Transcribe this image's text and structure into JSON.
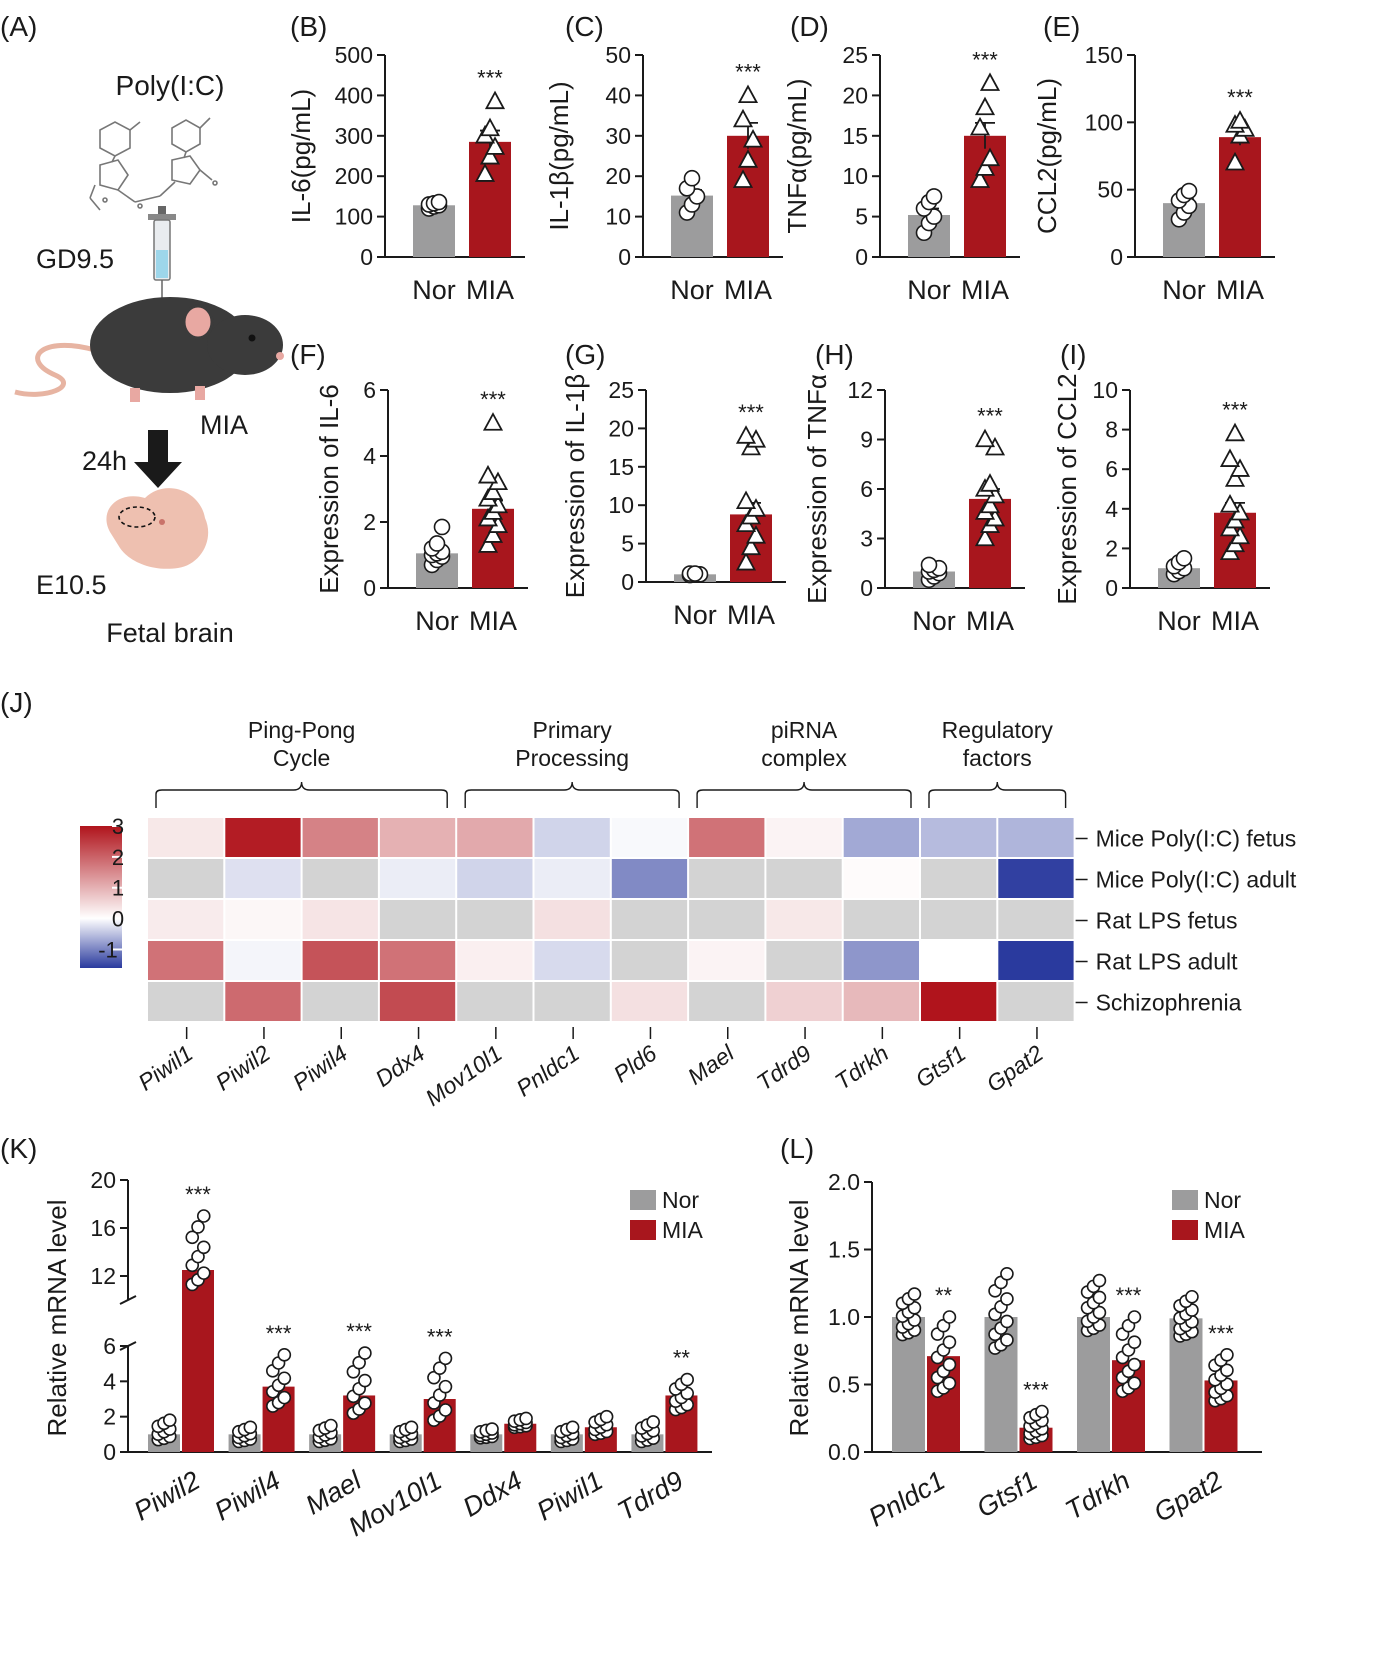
{
  "colors": {
    "nor": "#9c9c9d",
    "mia": "#a8161d",
    "axis": "#1a1a1a",
    "hm_low": "#2a3a9e",
    "hm_mid": "#ffffff",
    "hm_high": "#b0141c",
    "hm_na": "#d3d3d3"
  },
  "panel_a": {
    "label": "(A)",
    "drug": "Poly(I:C)",
    "gd": "GD9.5",
    "mia": "MIA",
    "time": "24h",
    "stage": "E10.5",
    "tissue": "Fetal brain"
  },
  "chart_data": [
    {
      "id": "B",
      "label": "(B)",
      "type": "bar",
      "ylabel": "IL-6(pg/mL)",
      "ylim": [
        0,
        500
      ],
      "ticks": [
        0,
        100,
        200,
        300,
        400,
        500
      ],
      "categories": [
        "Nor",
        "MIA"
      ],
      "values": [
        128,
        285
      ],
      "errors": [
        6,
        28
      ],
      "sig": "***",
      "points": [
        [
          120,
          125,
          128,
          130,
          133,
          136
        ],
        [
          205,
          248,
          272,
          300,
          318,
          385
        ]
      ]
    },
    {
      "id": "C",
      "label": "(C)",
      "type": "bar",
      "ylabel": "IL-1β(pg/mL)",
      "ylim": [
        0,
        50
      ],
      "ticks": [
        0,
        10,
        20,
        30,
        40,
        50
      ],
      "categories": [
        "Nor",
        "MIA"
      ],
      "values": [
        15.2,
        30
      ],
      "errors": [
        1.4,
        3.2
      ],
      "sig": "***",
      "points": [
        [
          11,
          13,
          15,
          17,
          19.5
        ],
        [
          19,
          24,
          29,
          34,
          40
        ]
      ]
    },
    {
      "id": "D",
      "label": "(D)",
      "type": "bar",
      "ylabel": "TNFα(pg/mL)",
      "ylim": [
        0,
        25
      ],
      "ticks": [
        0,
        5,
        10,
        15,
        20,
        25
      ],
      "categories": [
        "Nor",
        "MIA"
      ],
      "values": [
        5.2,
        15
      ],
      "errors": [
        0.8,
        1.6
      ],
      "sig": "***",
      "points": [
        [
          3,
          4.2,
          5,
          6,
          6.8,
          7.5
        ],
        [
          9.5,
          11,
          12.2,
          16,
          18.5,
          21.5
        ]
      ]
    },
    {
      "id": "E",
      "label": "(E)",
      "type": "bar",
      "ylabel": "CCL2(pg/mL)",
      "ylim": [
        0,
        150
      ],
      "ticks": [
        0,
        50,
        100,
        150
      ],
      "categories": [
        "Nor",
        "MIA"
      ],
      "values": [
        40,
        89
      ],
      "errors": [
        3,
        6
      ],
      "sig": "***",
      "points": [
        [
          28,
          33,
          38,
          42,
          46,
          49
        ],
        [
          70,
          90,
          95,
          98,
          101
        ]
      ]
    },
    {
      "id": "F",
      "label": "(F)",
      "type": "bar",
      "ylabel": "Expression of IL-6",
      "ylim": [
        0,
        6
      ],
      "ticks": [
        0,
        2,
        4,
        6
      ],
      "categories": [
        "Nor",
        "MIA"
      ],
      "values": [
        1.05,
        2.4
      ],
      "errors": [
        0.1,
        0.25
      ],
      "sig": "***",
      "points": [
        [
          0.7,
          0.85,
          0.95,
          1.0,
          1.05,
          1.1,
          1.2,
          1.35,
          1.85
        ],
        [
          1.3,
          1.6,
          1.9,
          2.1,
          2.3,
          2.5,
          2.7,
          2.9,
          3.2,
          3.4,
          5.0
        ]
      ]
    },
    {
      "id": "G",
      "label": "(G)",
      "type": "bar",
      "ylabel": "Expression of IL-1β",
      "ylim": [
        0,
        25
      ],
      "ticks": [
        0,
        5,
        10,
        15,
        20,
        25
      ],
      "categories": [
        "Nor",
        "MIA"
      ],
      "values": [
        1.0,
        8.8
      ],
      "errors": [
        0.1,
        1.5
      ],
      "sig": "***",
      "points": [
        [
          0.9,
          1.0,
          1.0,
          1.1,
          1.1
        ],
        [
          2.5,
          4.5,
          6.0,
          7.5,
          8.5,
          9.5,
          10.5,
          17.5,
          18.5,
          19.0
        ]
      ]
    },
    {
      "id": "H",
      "label": "(H)",
      "type": "bar",
      "ylabel": "Expression of TNFα",
      "ylim": [
        0,
        12
      ],
      "ticks": [
        0,
        3,
        6,
        9,
        12
      ],
      "categories": [
        "Nor",
        "MIA"
      ],
      "values": [
        1.0,
        5.4
      ],
      "errors": [
        0.1,
        0.6
      ],
      "sig": "***",
      "points": [
        [
          0.5,
          0.7,
          0.9,
          1.0,
          1.1,
          1.2,
          1.4
        ],
        [
          3.0,
          3.8,
          4.2,
          4.6,
          5.0,
          5.6,
          6.0,
          6.3,
          8.5,
          9.0
        ]
      ]
    },
    {
      "id": "I",
      "label": "(I)",
      "type": "bar",
      "ylabel": "Expression of CCL2",
      "ylim": [
        0,
        10
      ],
      "ticks": [
        0,
        2,
        4,
        6,
        8,
        10
      ],
      "categories": [
        "Nor",
        "MIA"
      ],
      "values": [
        1.0,
        3.8
      ],
      "errors": [
        0.1,
        0.5
      ],
      "sig": "***",
      "points": [
        [
          0.7,
          0.85,
          1.0,
          1.1,
          1.3,
          1.5
        ],
        [
          1.8,
          2.2,
          2.6,
          3.0,
          3.4,
          3.8,
          4.2,
          5.5,
          6.0,
          6.5,
          7.8
        ]
      ]
    },
    {
      "id": "J",
      "label": "(J)",
      "type": "heatmap",
      "groups": [
        {
          "title": [
            "Ping-Pong",
            "Cycle"
          ],
          "from": 0,
          "to": 3
        },
        {
          "title": [
            "Primary",
            "Processing"
          ],
          "from": 4,
          "to": 6
        },
        {
          "title": [
            "piRNA",
            "complex"
          ],
          "from": 7,
          "to": 9
        },
        {
          "title": [
            "Regulatory",
            "factors"
          ],
          "from": 10,
          "to": 11
        }
      ],
      "columns": [
        "Piwil1",
        "Piwil2",
        "Piwil4",
        "Ddx4",
        "Mov10l1",
        "Pnldc1",
        "Pld6",
        "Mael",
        "Tdrd9",
        "Tdrkh",
        "Gtsf1",
        "Gpat2"
      ],
      "rows": [
        "Mice Poly(I:C) fetus",
        "Mice Poly(I:C) adult",
        "Rat LPS fetus",
        "Rat LPS adult",
        "Schizophrenia"
      ],
      "values": [
        [
          0.3,
          2.9,
          1.6,
          1.0,
          1.1,
          -0.35,
          -0.05,
          1.8,
          0.15,
          -0.7,
          -0.55,
          -0.6
        ],
        [
          null,
          -0.25,
          null,
          -0.15,
          -0.35,
          -0.15,
          -0.95,
          null,
          null,
          0.05,
          null,
          -1.55
        ],
        [
          0.25,
          0.1,
          0.35,
          null,
          null,
          0.4,
          null,
          null,
          0.3,
          null,
          null,
          null
        ],
        [
          1.8,
          -0.08,
          2.2,
          1.8,
          0.2,
          -0.3,
          null,
          0.15,
          null,
          -0.85,
          0.0,
          -2.5
        ],
        [
          null,
          1.9,
          null,
          2.3,
          null,
          null,
          0.4,
          null,
          0.6,
          0.9,
          3.0,
          null
        ]
      ],
      "scale": {
        "min": -1.6,
        "max": 3,
        "ticks": [
          3,
          2,
          1,
          0,
          -1
        ]
      }
    },
    {
      "id": "K",
      "label": "(K)",
      "type": "bar",
      "ylabel": "Relative mRNA level",
      "broken_axis": true,
      "lower_ticks": [
        0,
        2,
        4,
        6
      ],
      "upper_ticks": [
        12,
        16,
        20
      ],
      "legend": [
        "Nor",
        "MIA"
      ],
      "categories": [
        "Piwil2",
        "Piwil4",
        "Mael",
        "Mov10l1",
        "Ddx4",
        "Piwil1",
        "Tdrd9"
      ],
      "series": [
        {
          "name": "Nor",
          "values": [
            1.0,
            1.0,
            1.0,
            1.0,
            1.0,
            1.0,
            1.0
          ]
        },
        {
          "name": "MIA",
          "values": [
            12.5,
            3.7,
            3.2,
            3.0,
            1.6,
            1.4,
            3.2
          ]
        }
      ],
      "sig": [
        "***",
        "***",
        "***",
        "***",
        "",
        "",
        "**"
      ],
      "nor_spread": [
        [
          0.7,
          1.8
        ],
        [
          0.6,
          1.4
        ],
        [
          0.6,
          1.5
        ],
        [
          0.6,
          1.4
        ],
        [
          0.8,
          1.3
        ],
        [
          0.6,
          1.4
        ],
        [
          0.6,
          1.7
        ]
      ],
      "mia_spread": [
        [
          11.3,
          17.0
        ],
        [
          2.6,
          5.5
        ],
        [
          2.2,
          5.6
        ],
        [
          1.8,
          5.3
        ],
        [
          1.4,
          1.9
        ],
        [
          1.0,
          2.0
        ],
        [
          2.4,
          4.1
        ]
      ]
    },
    {
      "id": "L",
      "label": "(L)",
      "type": "bar",
      "ylabel": "Relative mRNA level",
      "ylim": [
        0,
        2.0
      ],
      "ticks": [
        "0.0",
        "0.5",
        "1.0",
        "1.5",
        "2.0"
      ],
      "legend": [
        "Nor",
        "MIA"
      ],
      "categories": [
        "Pnldc1",
        "Gtsf1",
        "Tdrkh",
        "Gpat2"
      ],
      "series": [
        {
          "name": "Nor",
          "values": [
            1.0,
            1.0,
            1.0,
            0.99
          ]
        },
        {
          "name": "MIA",
          "values": [
            0.71,
            0.18,
            0.68,
            0.53
          ]
        }
      ],
      "sig": [
        "**",
        "***",
        "***",
        "***"
      ],
      "nor_spread": [
        [
          0.87,
          1.17
        ],
        [
          0.77,
          1.32
        ],
        [
          0.9,
          1.27
        ],
        [
          0.86,
          1.15
        ]
      ],
      "mia_spread": [
        [
          0.45,
          1.0
        ],
        [
          0.1,
          0.3
        ],
        [
          0.45,
          1.0
        ],
        [
          0.38,
          0.72
        ]
      ]
    }
  ]
}
